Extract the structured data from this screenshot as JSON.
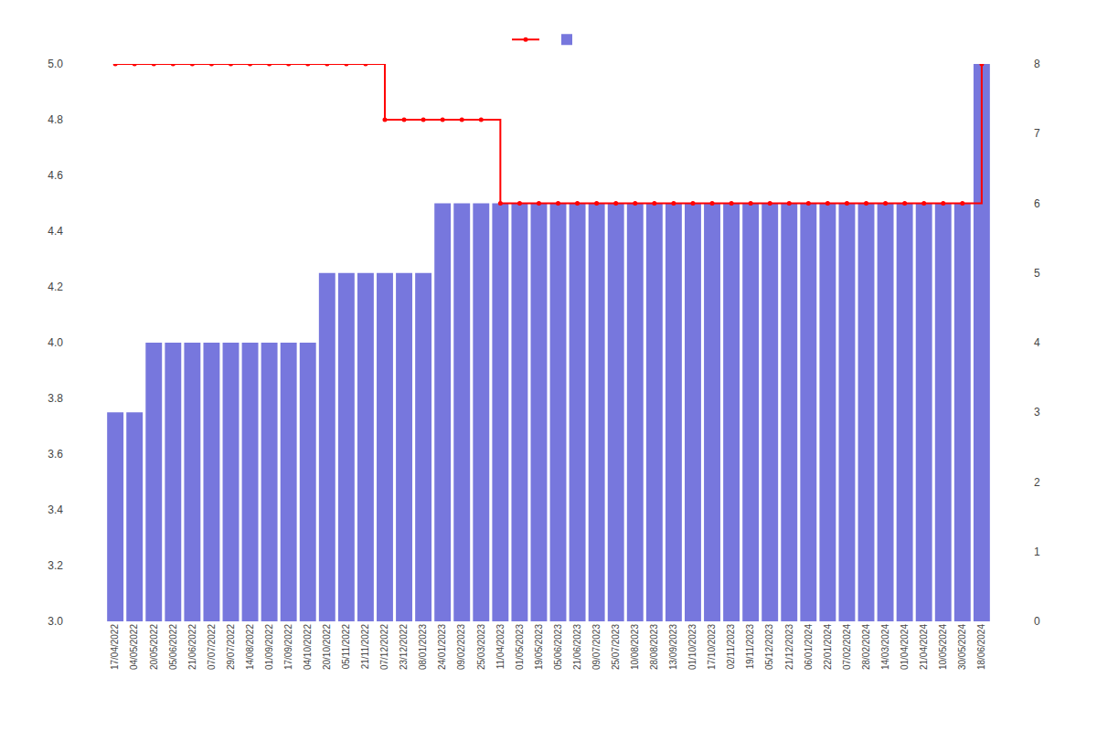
{
  "chart_data": {
    "type": "bar",
    "categories": [
      "17/04/2022",
      "04/05/2022",
      "20/05/2022",
      "05/06/2022",
      "21/06/2022",
      "07/07/2022",
      "29/07/2022",
      "14/08/2022",
      "01/09/2022",
      "17/09/2022",
      "04/10/2022",
      "20/10/2022",
      "05/11/2022",
      "21/11/2022",
      "07/12/2022",
      "23/12/2022",
      "08/01/2023",
      "24/01/2023",
      "09/02/2023",
      "25/03/2023",
      "11/04/2023",
      "01/05/2023",
      "19/05/2023",
      "05/06/2023",
      "21/06/2023",
      "09/07/2023",
      "25/07/2023",
      "10/08/2023",
      "28/08/2023",
      "13/09/2023",
      "01/10/2023",
      "17/10/2023",
      "02/11/2023",
      "19/11/2023",
      "05/12/2023",
      "21/12/2023",
      "06/01/2024",
      "22/01/2024",
      "07/02/2024",
      "28/02/2024",
      "14/03/2024",
      "01/04/2024",
      "21/04/2024",
      "10/05/2024",
      "30/05/2024",
      "18/06/2024"
    ],
    "series": [
      {
        "type": "bar",
        "color": "#7777dd",
        "values": [
          3.75,
          3.75,
          4.0,
          4.0,
          4.0,
          4.0,
          4.0,
          4.0,
          4.0,
          4.0,
          4.0,
          4.25,
          4.25,
          4.25,
          4.25,
          4.25,
          4.25,
          4.5,
          4.5,
          4.5,
          4.5,
          4.5,
          4.5,
          4.5,
          4.5,
          4.5,
          4.5,
          4.5,
          4.5,
          4.5,
          4.5,
          4.5,
          4.5,
          4.5,
          4.5,
          4.5,
          4.5,
          4.5,
          4.5,
          4.5,
          4.5,
          4.5,
          4.5,
          4.5,
          4.5,
          5.0
        ]
      },
      {
        "type": "line",
        "color": "#ff0000",
        "line_style": "step",
        "marker": "circle",
        "values": [
          5.0,
          5.0,
          5.0,
          5.0,
          5.0,
          5.0,
          5.0,
          5.0,
          5.0,
          5.0,
          5.0,
          5.0,
          5.0,
          5.0,
          4.8,
          4.8,
          4.8,
          4.8,
          4.8,
          4.8,
          4.5,
          4.5,
          4.5,
          4.5,
          4.5,
          4.5,
          4.5,
          4.5,
          4.5,
          4.5,
          4.5,
          4.5,
          4.5,
          4.5,
          4.5,
          4.5,
          4.5,
          4.5,
          4.5,
          4.5,
          4.5,
          4.5,
          4.5,
          4.5,
          4.5,
          5.0
        ]
      }
    ],
    "ylim": [
      3.0,
      5.0
    ],
    "yticks": [
      {
        "value": 3.0,
        "label": "3.0"
      },
      3.2,
      3.4,
      3.6,
      3.8,
      {
        "value": 4.0,
        "label": "4.0"
      },
      4.2,
      4.4,
      4.6,
      4.8,
      {
        "value": 5.0,
        "label": "5.0"
      }
    ],
    "y2lim": [
      0,
      8
    ],
    "y2ticks": [
      0,
      1,
      2,
      3,
      4,
      5,
      6,
      7,
      8
    ],
    "grid": false,
    "legend": "top"
  }
}
